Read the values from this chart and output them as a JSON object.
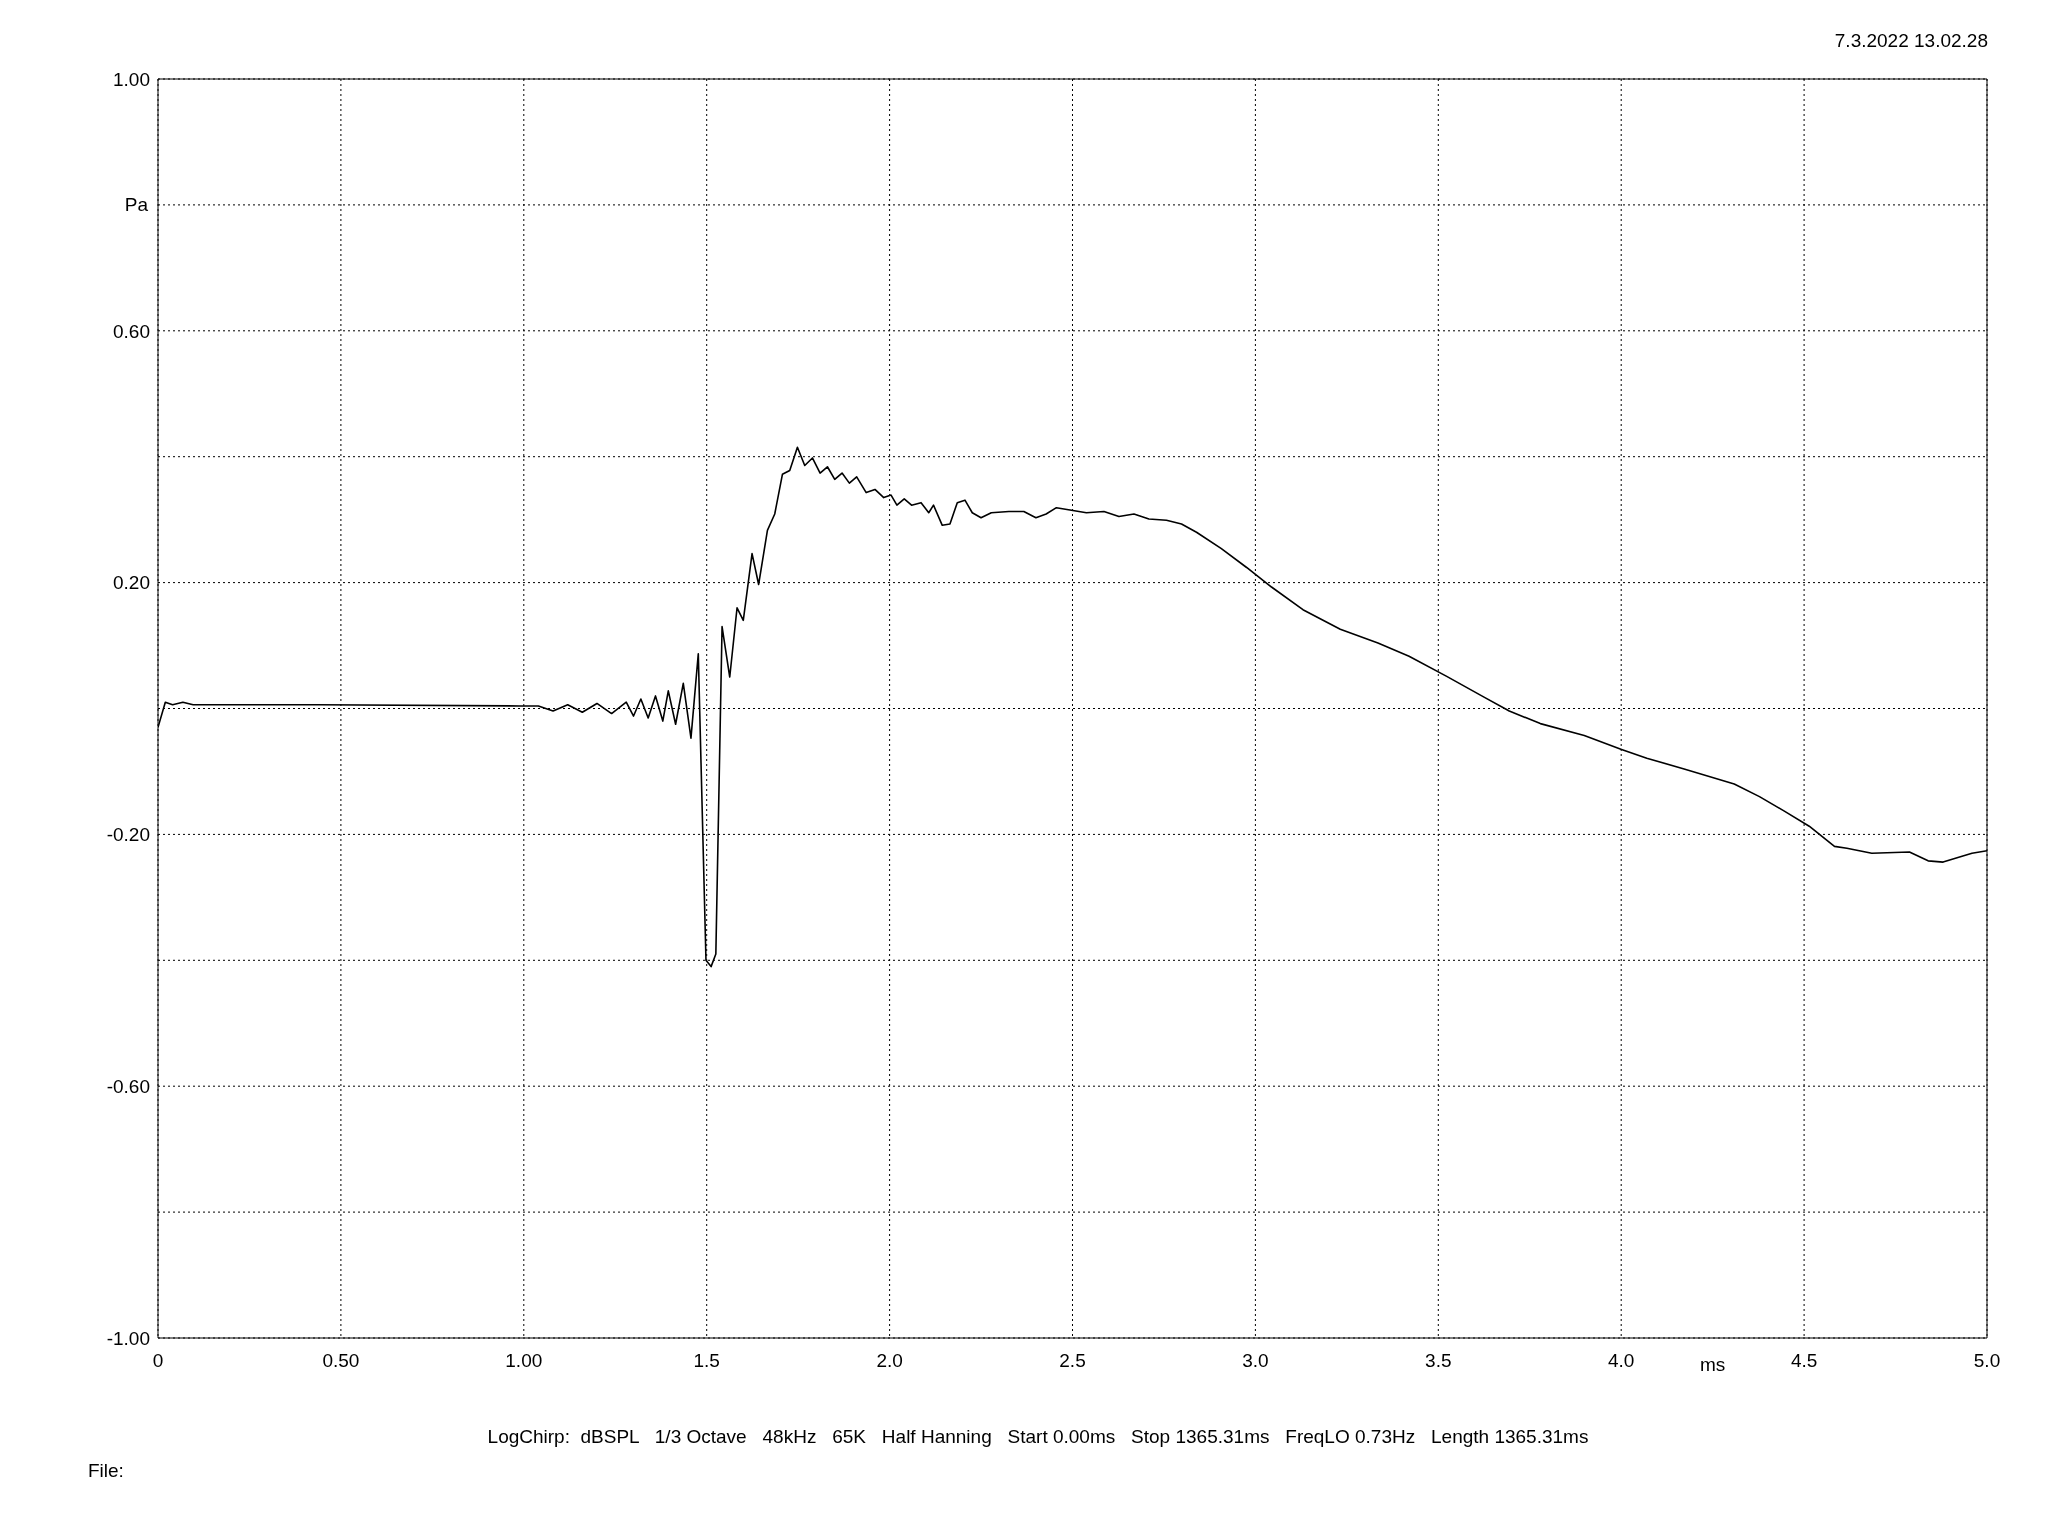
{
  "chart_data": {
    "type": "line",
    "xlabel": "ms",
    "ylabel": "Pa",
    "annotations": [
      "7.3.2022 13.02.28",
      "LogChirp:  dBSPL   1/3 Octave   48kHz   65K   Half Hanning   Start 0.00ms   Stop 1365.31ms   FreqLO 0.73Hz   Length 1365.31ms",
      "File:"
    ],
    "x": [
      0,
      0.02,
      0.04,
      0.068,
      0.096,
      0.44,
      0.99,
      1.04,
      1.08,
      1.12,
      1.16,
      1.2,
      1.24,
      1.28,
      1.3,
      1.32,
      1.34,
      1.36,
      1.38,
      1.395,
      1.415,
      1.436,
      1.457,
      1.477,
      1.498,
      1.512,
      1.525,
      1.542,
      1.563,
      1.583,
      1.6,
      1.624,
      1.642,
      1.666,
      1.686,
      1.707,
      1.727,
      1.748,
      1.768,
      1.789,
      1.81,
      1.83,
      1.85,
      1.87,
      1.89,
      1.91,
      1.936,
      1.96,
      1.984,
      2.004,
      2.02,
      2.04,
      2.06,
      2.086,
      2.107,
      2.12,
      2.144,
      2.165,
      2.185,
      2.206,
      2.226,
      2.25,
      2.278,
      2.326,
      2.367,
      2.4,
      2.428,
      2.456,
      2.497,
      2.538,
      2.586,
      2.627,
      2.668,
      2.709,
      2.757,
      2.798,
      2.839,
      2.907,
      2.976,
      3.044,
      3.13,
      3.232,
      3.335,
      3.42,
      3.523,
      3.625,
      3.694,
      3.779,
      3.899,
      4.001,
      4.07,
      4.172,
      4.309,
      4.378,
      4.446,
      4.514,
      4.583,
      4.617,
      4.685,
      4.788,
      4.839,
      4.88,
      4.925,
      4.959,
      5.0
    ],
    "series": [
      {
        "color": "#000000",
        "values": [
          -0.03,
          0.01,
          0.006,
          0.01,
          0.006,
          0.006,
          0.004,
          0.004,
          -0.004,
          0.006,
          -0.006,
          0.008,
          -0.008,
          0.01,
          -0.012,
          0.015,
          -0.015,
          0.02,
          -0.02,
          0.028,
          -0.025,
          0.04,
          -0.047,
          0.087,
          -0.4,
          -0.41,
          -0.39,
          0.13,
          0.05,
          0.16,
          0.14,
          0.246,
          0.197,
          0.283,
          0.309,
          0.372,
          0.378,
          0.415,
          0.386,
          0.398,
          0.374,
          0.384,
          0.364,
          0.374,
          0.358,
          0.368,
          0.343,
          0.348,
          0.335,
          0.339,
          0.323,
          0.333,
          0.323,
          0.327,
          0.311,
          0.323,
          0.291,
          0.293,
          0.327,
          0.331,
          0.311,
          0.303,
          0.311,
          0.313,
          0.313,
          0.303,
          0.309,
          0.319,
          0.315,
          0.311,
          0.313,
          0.305,
          0.309,
          0.301,
          0.299,
          0.293,
          0.28,
          0.254,
          0.224,
          0.193,
          0.157,
          0.126,
          0.104,
          0.083,
          0.051,
          0.018,
          -0.004,
          -0.024,
          -0.043,
          -0.065,
          -0.079,
          -0.096,
          -0.12,
          -0.14,
          -0.163,
          -0.187,
          -0.219,
          -0.222,
          -0.23,
          -0.228,
          -0.242,
          -0.244,
          -0.236,
          -0.23,
          -0.226
        ]
      }
    ],
    "xlim": [
      0,
      5
    ],
    "ylim": [
      -1,
      1
    ],
    "xticks": [
      0,
      {
        "value": 0.5,
        "label": "0.50"
      },
      {
        "value": 1,
        "label": "1.00"
      },
      1.5,
      {
        "value": 2,
        "label": "2.0"
      },
      2.5,
      {
        "value": 3,
        "label": "3.0"
      },
      3.5,
      {
        "value": 4,
        "label": "4.0"
      },
      4.5,
      {
        "value": 5,
        "label": "5.0"
      }
    ],
    "yticks": [
      {
        "value": -1,
        "label": "-1.00"
      },
      {
        "value": -0.8,
        "label": null
      },
      {
        "value": -0.6,
        "label": "-0.60"
      },
      {
        "value": -0.4,
        "label": null
      },
      {
        "value": -0.2,
        "label": "-0.20"
      },
      {
        "value": 0,
        "label": null
      },
      {
        "value": 0.2,
        "label": "0.20"
      },
      {
        "value": 0.4,
        "label": null
      },
      {
        "value": 0.6,
        "label": "0.60"
      },
      {
        "value": 0.8,
        "label": null
      },
      {
        "value": 1,
        "label": "1.00"
      }
    ],
    "grid": true,
    "legend": false,
    "marker": "none",
    "line_style": "solid"
  }
}
